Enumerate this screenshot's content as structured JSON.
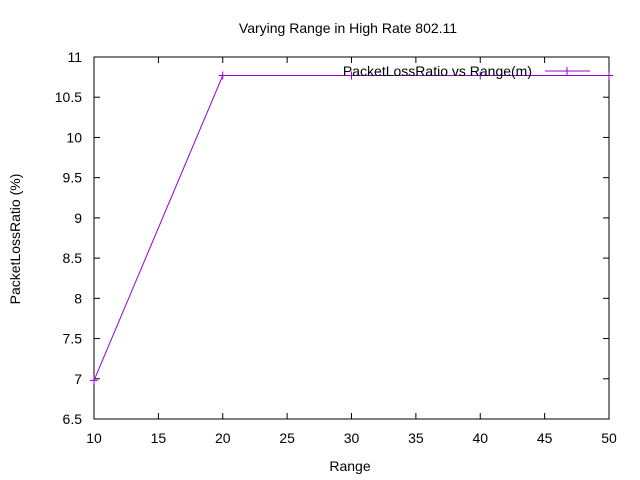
{
  "chart_data": {
    "type": "line",
    "title": "Varying Range in High Rate 802.11",
    "xlabel": "Range",
    "ylabel": "PacketLossRatio (%)",
    "xlim": [
      10,
      50
    ],
    "ylim": [
      6.5,
      11
    ],
    "x_ticks": [
      10,
      15,
      20,
      25,
      30,
      35,
      40,
      45,
      50
    ],
    "y_ticks": [
      6.5,
      7,
      7.5,
      8,
      8.5,
      9,
      9.5,
      10,
      10.5,
      11
    ],
    "x_tick_labels": [
      "10",
      "15",
      "20",
      "25",
      "30",
      "35",
      "40",
      "45",
      "50"
    ],
    "y_tick_labels": [
      "6.5",
      "7",
      "7.5",
      "8",
      "8.5",
      "9",
      "9.5",
      "10",
      "10.5",
      "11"
    ],
    "grid": false,
    "legend_position": "top-right",
    "series": [
      {
        "name": "PacketLossRatio vs Range(m)",
        "color": "#9400d3",
        "marker": "plus",
        "x": [
          10,
          20,
          30,
          40,
          50
        ],
        "y": [
          6.98,
          10.77,
          10.77,
          10.77,
          10.77
        ]
      }
    ]
  }
}
